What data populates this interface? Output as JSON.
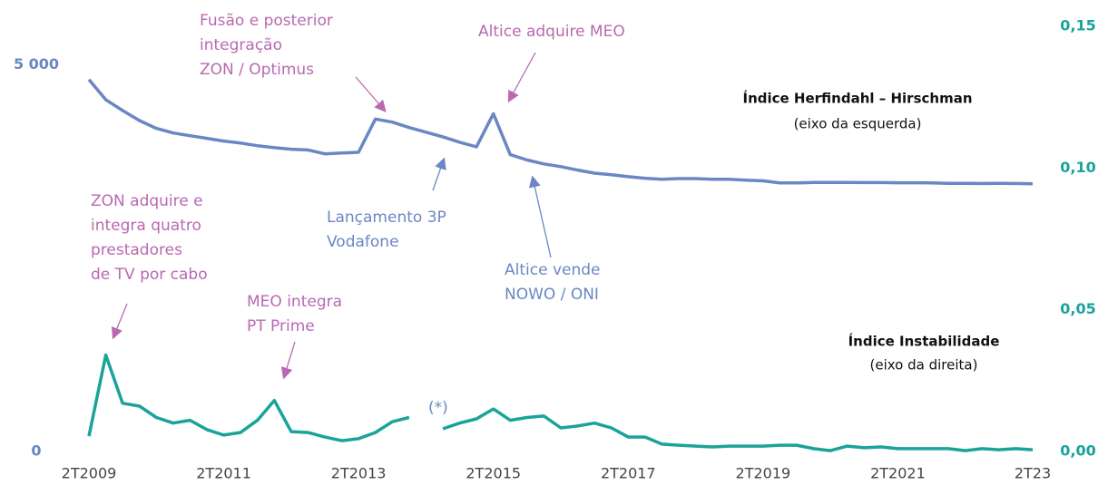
{
  "chart_data": {
    "type": "line",
    "categories": [
      "2T2009",
      null,
      null,
      null,
      null,
      null,
      null,
      null,
      "2T2011",
      null,
      null,
      null,
      null,
      null,
      null,
      null,
      "2T2013",
      null,
      null,
      null,
      null,
      null,
      null,
      null,
      "2T2015",
      null,
      null,
      null,
      null,
      null,
      null,
      null,
      "2T2017",
      null,
      null,
      null,
      null,
      null,
      null,
      null,
      "2T2019",
      null,
      null,
      null,
      null,
      null,
      null,
      null,
      "2T2021",
      null,
      null,
      null,
      null,
      null,
      null,
      null,
      "2T23"
    ],
    "ylim": [
      0,
      5500
    ],
    "yticks": [
      0,
      {
        "value": 5000,
        "label": "5 000"
      }
    ],
    "y2lim": [
      0,
      0.15
    ],
    "y2ticks": [
      {
        "value": 0,
        "label": "0,00"
      },
      {
        "value": 0.05,
        "label": "0,05"
      },
      {
        "value": 0.1,
        "label": "0,10"
      },
      {
        "value": 0.15,
        "label": "0,15"
      }
    ],
    "series": [
      {
        "name": "Índice Herfindahl – Hirschman",
        "note": "(eixo da esquerda)",
        "color": "#6a87c4",
        "values": [
          4810,
          4550,
          4410,
          4280,
          4180,
          4120,
          4085,
          4050,
          4015,
          3990,
          3955,
          3930,
          3910,
          3900,
          3850,
          3860,
          3870,
          4300,
          4260,
          4190,
          4130,
          4070,
          4000,
          3940,
          4370,
          3840,
          3770,
          3720,
          3685,
          3640,
          3600,
          3580,
          3555,
          3535,
          3520,
          3530,
          3530,
          3520,
          3520,
          3510,
          3500,
          3475,
          3475,
          3480,
          3480,
          3480,
          3478,
          3478,
          3476,
          3476,
          3475,
          3468,
          3468,
          3466,
          3468,
          3466,
          3462
        ]
      },
      {
        "name": "Índice Instabilidade",
        "note": "(eixo da direita)",
        "color": "#1aa39a",
        "axis": "y2",
        "values": [
          0.0054,
          0.034,
          0.017,
          0.016,
          0.012,
          0.01,
          0.011,
          0.0077,
          0.0058,
          0.0067,
          0.011,
          0.018,
          0.007,
          0.0067,
          0.0051,
          0.0038,
          0.0045,
          0.0067,
          0.0105,
          0.012,
          null,
          0.008,
          0.01,
          0.0115,
          0.015,
          0.011,
          0.012,
          0.0125,
          0.0083,
          0.009,
          0.01,
          0.0083,
          0.0051,
          0.0051,
          0.0026,
          0.0022,
          0.0019,
          0.0016,
          0.0019,
          0.0019,
          0.0019,
          0.0022,
          0.0022,
          0.001,
          0.0003,
          0.0019,
          0.0013,
          0.0016,
          0.001,
          0.001,
          0.001,
          0.001,
          0.0003,
          0.001,
          0.0006,
          0.001,
          0.0006
        ]
      }
    ],
    "annotations": [
      {
        "lines": [
          "Fusão e posterior",
          "integração",
          "ZON / Optimus"
        ],
        "color": "#b86ab0"
      },
      {
        "lines": [
          "Altice adquire MEO"
        ],
        "color": "#b86ab0"
      },
      {
        "lines": [
          "Lançamento 3P",
          "Vodafone"
        ],
        "color": "#6a87c4"
      },
      {
        "lines": [
          "Altice vende",
          "NOWO / ONI"
        ],
        "color": "#6a87c4"
      },
      {
        "lines": [
          "ZON adquire e",
          "integra quatro",
          "prestadores",
          "de TV por cabo"
        ],
        "color": "#b86ab0"
      },
      {
        "lines": [
          "MEO integra",
          "PT Prime"
        ],
        "color": "#b86ab0"
      },
      {
        "lines": [
          "(*)"
        ],
        "color": "#6a87c4"
      }
    ]
  }
}
